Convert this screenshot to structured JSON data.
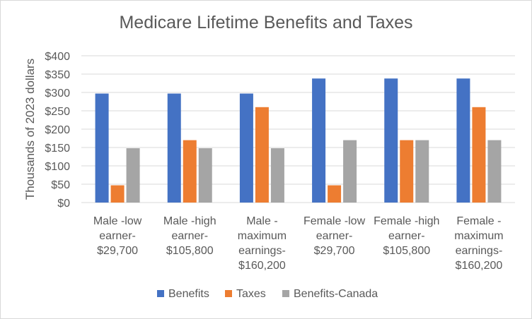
{
  "chart_data": {
    "type": "bar",
    "title": "Medicare Lifetime Benefits and Taxes",
    "ylabel": "Thousands of 2023 dollars",
    "xlabel": "",
    "ylim": [
      0,
      400
    ],
    "yticks": [
      "$0",
      "$50",
      "$100",
      "$150",
      "$200",
      "$250",
      "$300",
      "$350",
      "$400"
    ],
    "ytick_values": [
      0,
      50,
      100,
      150,
      200,
      250,
      300,
      350,
      400
    ],
    "grid": true,
    "legend_position": "bottom",
    "categories": [
      [
        "Male -low",
        "earner-",
        "$29,700"
      ],
      [
        "Male -high",
        "earner-",
        "$105,800"
      ],
      [
        "Male -",
        "maximum",
        "earnings-",
        "$160,200"
      ],
      [
        "Female -low",
        "earner-",
        "$29,700"
      ],
      [
        "Female -high",
        "earner-",
        "$105,800"
      ],
      [
        "Female -",
        "maximum",
        "earnings-",
        "$160,200"
      ]
    ],
    "series": [
      {
        "name": "Benefits",
        "color": "#4472c4",
        "values": [
          297,
          297,
          297,
          338,
          338,
          338
        ]
      },
      {
        "name": "Taxes",
        "color": "#ed7d31",
        "values": [
          47,
          170,
          260,
          47,
          170,
          260
        ]
      },
      {
        "name": "Benefits-Canada",
        "color": "#a5a5a5",
        "values": [
          148,
          148,
          148,
          170,
          170,
          170
        ]
      }
    ]
  }
}
